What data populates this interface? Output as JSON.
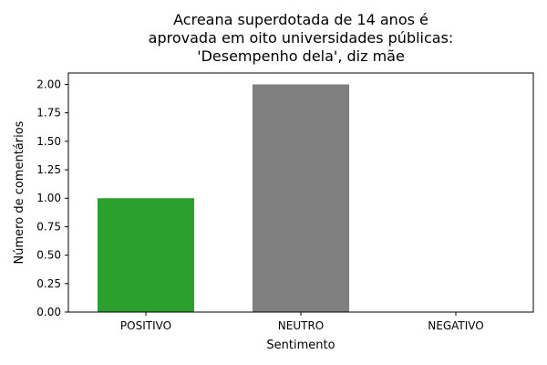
{
  "chart_data": {
    "type": "bar",
    "title": "Acreana superdotada de 14 anos é\naprovada em oito universidades públicas:\n'Desempenho dela', diz mãe",
    "xlabel": "Sentimento",
    "ylabel": "Número de comentários",
    "categories": [
      "POSITIVO",
      "NEUTRO",
      "NEGATIVO"
    ],
    "values": [
      1,
      2,
      0
    ],
    "colors": [
      "#2ca02c",
      "#808080",
      "#d62728"
    ],
    "ylim": [
      0,
      2.1
    ],
    "yticks": [
      "0.00",
      "0.25",
      "0.50",
      "0.75",
      "1.00",
      "1.25",
      "1.50",
      "1.75",
      "2.00"
    ],
    "grid": false
  }
}
